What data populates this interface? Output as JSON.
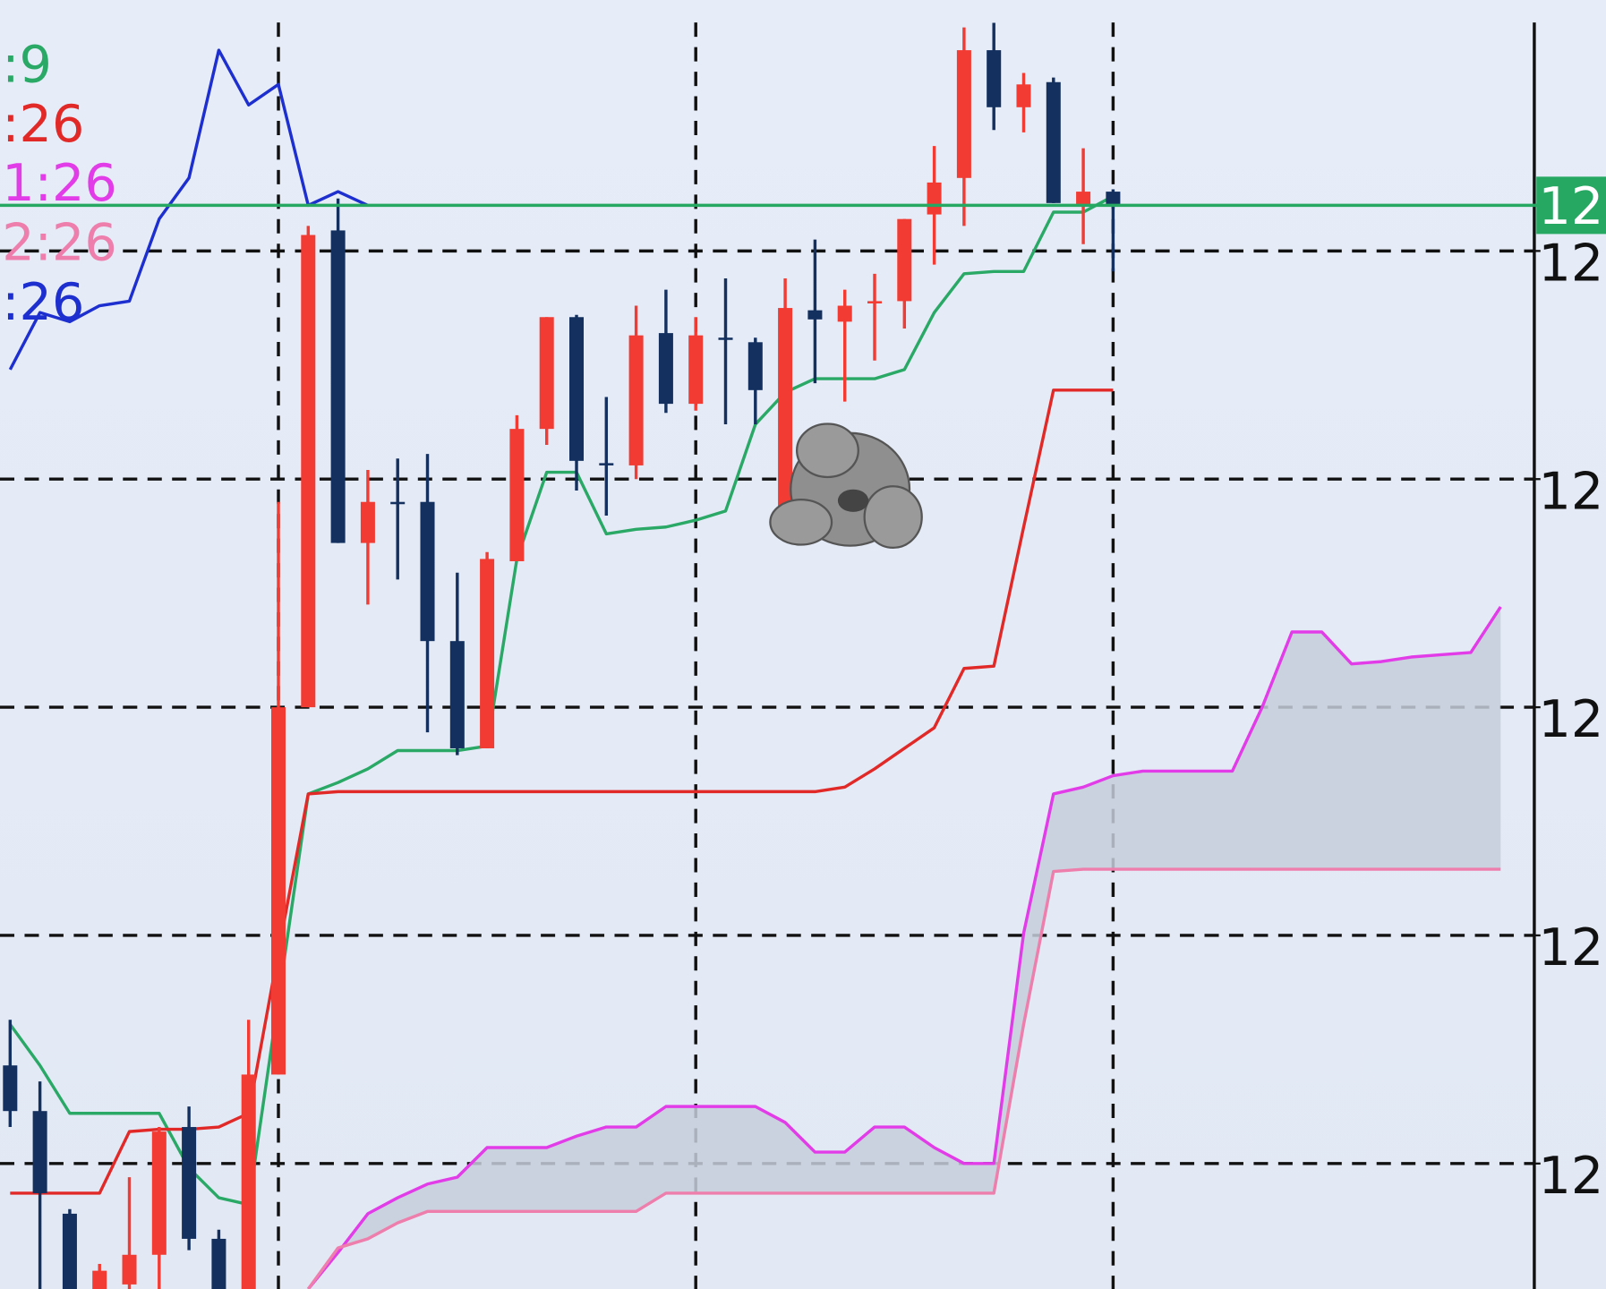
{
  "chart_data": {
    "type": "candlestick",
    "up_color": "#f23b32",
    "down_color": "#13305f",
    "ylim": [
      0.45,
      6.1
    ],
    "xlim": [
      -0.34,
      51.13
    ],
    "yticks": [
      {
        "value": 1,
        "label": "12"
      },
      {
        "value": 2,
        "label": "12"
      },
      {
        "value": 3,
        "label": "12"
      },
      {
        "value": 4,
        "label": "12"
      },
      {
        "value": 5,
        "label": "12"
      }
    ],
    "xgrid": [
      9,
      23,
      37
    ],
    "grid": true,
    "last_price": {
      "value": 5.2,
      "label": "12",
      "color": "#27a862"
    },
    "candles": [
      {
        "o": 1.43,
        "h": 1.63,
        "l": 1.16,
        "c": 1.23
      },
      {
        "o": 1.23,
        "h": 1.36,
        "l": 0.45,
        "c": 0.87
      },
      {
        "o": 0.78,
        "h": 0.8,
        "l": 0.45,
        "c": 0.45
      },
      {
        "o": 0.45,
        "h": 0.56,
        "l": 0.45,
        "c": 0.53
      },
      {
        "o": 0.47,
        "h": 0.94,
        "l": 0.45,
        "c": 0.6
      },
      {
        "o": 0.6,
        "h": 1.16,
        "l": 0.45,
        "c": 1.14
      },
      {
        "o": 1.16,
        "h": 1.25,
        "l": 0.62,
        "c": 0.67
      },
      {
        "o": 0.67,
        "h": 0.71,
        "l": 0.45,
        "c": 0.45
      },
      {
        "o": 0.45,
        "h": 1.63,
        "l": 0.45,
        "c": 1.39
      },
      {
        "o": 1.39,
        "h": 3.9,
        "l": 1.39,
        "c": 3.0
      },
      {
        "o": 3.0,
        "h": 5.11,
        "l": 3.0,
        "c": 5.07
      },
      {
        "o": 5.09,
        "h": 5.23,
        "l": 3.72,
        "c": 3.72
      },
      {
        "o": 3.72,
        "h": 4.04,
        "l": 3.45,
        "c": 3.9
      },
      {
        "o": 3.9,
        "h": 4.09,
        "l": 3.56,
        "c": 3.89
      },
      {
        "o": 3.9,
        "h": 4.11,
        "l": 2.89,
        "c": 3.29
      },
      {
        "o": 3.29,
        "h": 3.59,
        "l": 2.79,
        "c": 2.82
      },
      {
        "o": 2.82,
        "h": 3.68,
        "l": 2.82,
        "c": 3.65
      },
      {
        "o": 3.64,
        "h": 4.28,
        "l": 3.64,
        "c": 4.22
      },
      {
        "o": 4.22,
        "h": 4.71,
        "l": 4.15,
        "c": 4.71
      },
      {
        "o": 4.71,
        "h": 4.72,
        "l": 3.95,
        "c": 4.08
      },
      {
        "o": 4.07,
        "h": 4.36,
        "l": 3.84,
        "c": 4.06
      },
      {
        "o": 4.06,
        "h": 4.76,
        "l": 4.0,
        "c": 4.63
      },
      {
        "o": 4.64,
        "h": 4.83,
        "l": 4.29,
        "c": 4.33
      },
      {
        "o": 4.33,
        "h": 4.71,
        "l": 4.3,
        "c": 4.63
      },
      {
        "o": 4.62,
        "h": 4.88,
        "l": 4.24,
        "c": 4.61
      },
      {
        "o": 4.6,
        "h": 4.62,
        "l": 4.24,
        "c": 4.39
      },
      {
        "o": 3.86,
        "h": 4.88,
        "l": 3.83,
        "c": 4.75
      },
      {
        "o": 4.74,
        "h": 5.05,
        "l": 4.42,
        "c": 4.7
      },
      {
        "o": 4.69,
        "h": 4.83,
        "l": 4.34,
        "c": 4.76
      },
      {
        "o": 4.77,
        "h": 4.9,
        "l": 4.52,
        "c": 4.78
      },
      {
        "o": 4.78,
        "h": 5.14,
        "l": 4.66,
        "c": 5.14
      },
      {
        "o": 5.16,
        "h": 5.46,
        "l": 4.94,
        "c": 5.3
      },
      {
        "o": 5.32,
        "h": 5.98,
        "l": 5.11,
        "c": 5.88
      },
      {
        "o": 5.88,
        "h": 6.0,
        "l": 5.53,
        "c": 5.63
      },
      {
        "o": 5.63,
        "h": 5.78,
        "l": 5.52,
        "c": 5.73
      },
      {
        "o": 5.74,
        "h": 5.76,
        "l": 5.21,
        "c": 5.21
      },
      {
        "o": 5.2,
        "h": 5.45,
        "l": 5.03,
        "c": 5.26
      },
      {
        "o": 5.26,
        "h": 5.27,
        "l": 4.91,
        "c": 5.2
      }
    ],
    "series": [
      {
        "name": ":9",
        "color": "#2aa866",
        "values": [
          1.61,
          1.43,
          1.22,
          1.22,
          1.22,
          1.22,
          0.98,
          0.85,
          0.82,
          1.72,
          2.62,
          2.67,
          2.73,
          2.81,
          2.81,
          2.81,
          2.83,
          3.65,
          4.03,
          4.03,
          3.76,
          3.78,
          3.79,
          3.82,
          3.86,
          4.24,
          4.38,
          4.44,
          4.44,
          4.44,
          4.48,
          4.73,
          4.9,
          4.91,
          4.91,
          5.17,
          5.17,
          5.24,
          null,
          null,
          null,
          null,
          null,
          null,
          null,
          null,
          null,
          null,
          null,
          null,
          null
        ]
      },
      {
        "name": ":26",
        "color": "#e12a28",
        "values": [
          0.87,
          0.87,
          0.87,
          0.87,
          1.14,
          1.15,
          1.15,
          1.16,
          1.22,
          1.93,
          2.62,
          2.63,
          2.63,
          2.63,
          2.63,
          2.63,
          2.63,
          2.63,
          2.63,
          2.63,
          2.63,
          2.63,
          2.63,
          2.63,
          2.63,
          2.63,
          2.63,
          2.63,
          2.65,
          2.73,
          2.82,
          2.91,
          3.17,
          3.18,
          3.79,
          4.39,
          4.39,
          4.39,
          null,
          null,
          null,
          null,
          null,
          null,
          null,
          null,
          null,
          null,
          null,
          null,
          null
        ]
      },
      {
        "name": "1:26",
        "color": "#e23ce8",
        "values": [
          null,
          null,
          null,
          null,
          null,
          null,
          null,
          null,
          null,
          null,
          0.45,
          0.61,
          0.78,
          0.85,
          0.91,
          0.94,
          1.07,
          1.07,
          1.07,
          1.12,
          1.16,
          1.16,
          1.25,
          1.25,
          1.25,
          1.25,
          1.18,
          1.05,
          1.05,
          1.16,
          1.16,
          1.07,
          1.0,
          1.0,
          2.01,
          2.62,
          2.65,
          2.7,
          2.72,
          2.72,
          2.72,
          2.72,
          3.0,
          3.33,
          3.33,
          3.19,
          3.2,
          3.22,
          3.23,
          3.24,
          3.44
        ]
      },
      {
        "name": "2:26",
        "color": "#ee7eac",
        "values": [
          null,
          null,
          null,
          null,
          null,
          null,
          null,
          null,
          null,
          null,
          0.45,
          0.63,
          0.67,
          0.74,
          0.79,
          0.79,
          0.79,
          0.79,
          0.79,
          0.79,
          0.79,
          0.79,
          0.87,
          0.87,
          0.87,
          0.87,
          0.87,
          0.87,
          0.87,
          0.87,
          0.87,
          0.87,
          0.87,
          0.87,
          1.61,
          2.28,
          2.29,
          2.29,
          2.29,
          2.29,
          2.29,
          2.29,
          2.29,
          2.29,
          2.29,
          2.29,
          2.29,
          2.29,
          2.29,
          2.29,
          2.29
        ]
      },
      {
        "name": ":26",
        "color": "#1d2fcf",
        "values": [
          4.48,
          4.73,
          4.69,
          4.76,
          4.78,
          5.14,
          5.32,
          5.88,
          5.64,
          5.73,
          5.2,
          5.26,
          5.2,
          null,
          null,
          null,
          null,
          null,
          null,
          null,
          null,
          null,
          null,
          null,
          null,
          null,
          null,
          null,
          null,
          null,
          null,
          null,
          null,
          null,
          null,
          null,
          null,
          null,
          null,
          null,
          null,
          null,
          null,
          null,
          null,
          null,
          null,
          null,
          null,
          null,
          null
        ]
      }
    ]
  }
}
